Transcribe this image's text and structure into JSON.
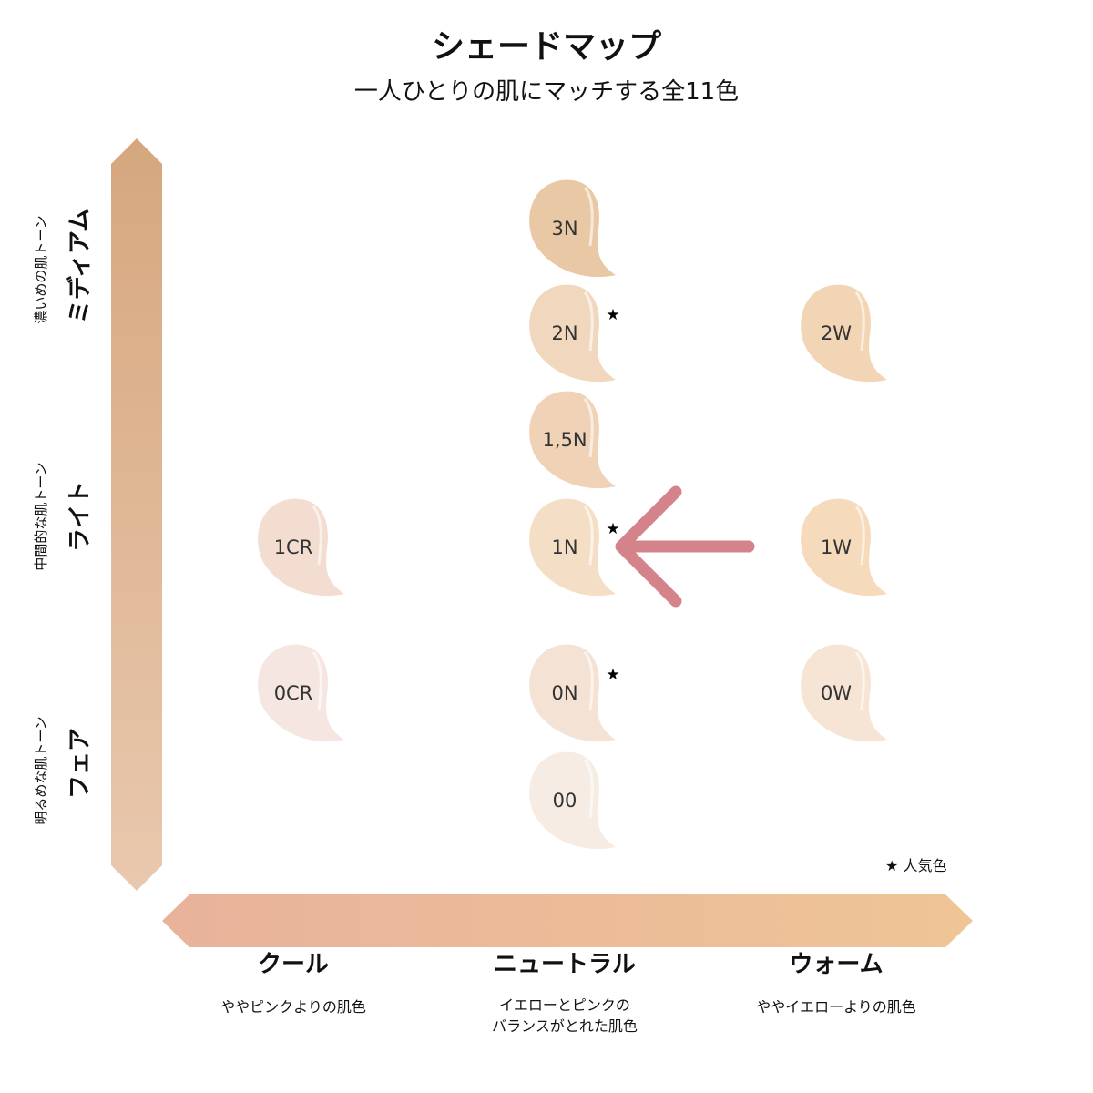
{
  "title": "シェードマップ",
  "subtitle": "一人ひとりの肌にマッチする全11色",
  "vertical_axis": {
    "levels": [
      {
        "label": "ミディアム",
        "description": "濃いめの肌トーン"
      },
      {
        "label": "ライト",
        "description": "中間的な肌トーン"
      },
      {
        "label": "フェア",
        "description": "明るめな肌トーン"
      }
    ],
    "gradient": [
      "#d6a77e",
      "#e9c8ae"
    ]
  },
  "horizontal_axis": {
    "categories": [
      {
        "label": "クール",
        "description": [
          "ややピンクよりの肌色"
        ]
      },
      {
        "label": "ニュートラル",
        "description": [
          "イエローとピンクの",
          "バランスがとれた肌色"
        ]
      },
      {
        "label": "ウォーム",
        "description": [
          "ややイエローよりの肌色"
        ]
      }
    ],
    "gradient": [
      "#e8b29b",
      "#efc596"
    ]
  },
  "shades": [
    {
      "name": "3N",
      "tone": "ミディアム",
      "type": "ニュートラル",
      "color": "#e9c8a5",
      "popular": false
    },
    {
      "name": "2N",
      "tone": "ミディアム",
      "type": "ニュートラル",
      "color": "#f1d7bd",
      "popular": true
    },
    {
      "name": "2W",
      "tone": "ミディアム",
      "type": "ウォーム",
      "color": "#f2d5b5",
      "popular": false
    },
    {
      "name": "1,5N",
      "tone": "ライト",
      "type": "ニュートラル",
      "color": "#f0d3b7",
      "popular": false
    },
    {
      "name": "1CR",
      "tone": "ライト",
      "type": "クール",
      "color": "#f3ddd0",
      "popular": false
    },
    {
      "name": "1N",
      "tone": "ライト",
      "type": "ニュートラル",
      "color": "#f4dec6",
      "popular": true
    },
    {
      "name": "1W",
      "tone": "ライト",
      "type": "ウォーム",
      "color": "#f5dabc",
      "popular": false
    },
    {
      "name": "0CR",
      "tone": "フェア",
      "type": "クール",
      "color": "#f5e6e2",
      "popular": false
    },
    {
      "name": "0N",
      "tone": "フェア",
      "type": "ニュートラル",
      "color": "#f4e3d4",
      "popular": true
    },
    {
      "name": "0W",
      "tone": "フェア",
      "type": "ウォーム",
      "color": "#f6e5d5",
      "popular": false
    },
    {
      "name": "00",
      "tone": "フェア",
      "type": "ニュートラル",
      "color": "#f6ece4",
      "popular": false
    }
  ],
  "legend": {
    "star": "★",
    "label": "人気色"
  },
  "highlight_arrow": {
    "target": "1N",
    "color": "#d4838b"
  }
}
